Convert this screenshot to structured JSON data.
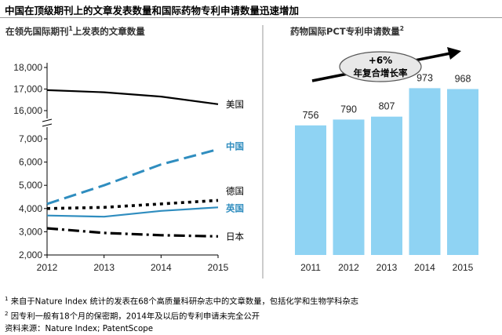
{
  "title": "中国在顶级期刊上的文章发表数量和国际药物专利申请数量迅速增加",
  "chart_data": [
    {
      "type": "line",
      "title": "在领先国际期刊",
      "title_sup": "1",
      "title_tail": "上发表的文章数量",
      "x": [
        2012,
        2013,
        2014,
        2015
      ],
      "x_ticks": [
        "2012",
        "2013",
        "2014",
        "2015"
      ],
      "y_ticks": [
        "2,000",
        "3,000",
        "4,000",
        "5,000",
        "6,000",
        "7,000",
        "16,000",
        "17,000",
        "18,000"
      ],
      "y_axis_break": [
        7000,
        16000
      ],
      "ylim": [
        2000,
        18000
      ],
      "series": [
        {
          "name": "美国",
          "values": [
            16950,
            16850,
            16650,
            16300
          ],
          "color": "#000000",
          "style": "solid"
        },
        {
          "name": "中国",
          "values": [
            4200,
            5000,
            5900,
            6550
          ],
          "color": "#2f8dbf",
          "style": "dashed"
        },
        {
          "name": "德国",
          "values": [
            4000,
            4050,
            4200,
            4350
          ],
          "color": "#000000",
          "style": "dotted"
        },
        {
          "name": "英国",
          "values": [
            3700,
            3650,
            3900,
            4050
          ],
          "color": "#2f8dbf",
          "style": "solid"
        },
        {
          "name": "日本",
          "values": [
            3150,
            2950,
            2850,
            2800
          ],
          "color": "#000000",
          "style": "dashdot"
        }
      ]
    },
    {
      "type": "bar",
      "title": "药物国际PCT专利申请数量",
      "title_sup": "2",
      "categories": [
        "2011",
        "2012",
        "2013",
        "2014",
        "2015"
      ],
      "values": [
        756,
        790,
        807,
        973,
        968
      ],
      "bar_color": "#8fd3f3",
      "ylim": [
        0,
        1300
      ],
      "trend_badge": {
        "line1": "+6%",
        "line2": "年复合增长率"
      }
    }
  ],
  "footnotes": {
    "note1_num": "1",
    "note1_text": "来自于Nature Index 统计的发表在68个高质量科研杂志中的文章数量，包括化学和生物学科杂志",
    "note2_num": "2",
    "note2_text": "因专利一般有18个月的保密期，2014年及以后的专利申请未完全公开",
    "source": "资料来源：Nature Index; PatentScope"
  }
}
